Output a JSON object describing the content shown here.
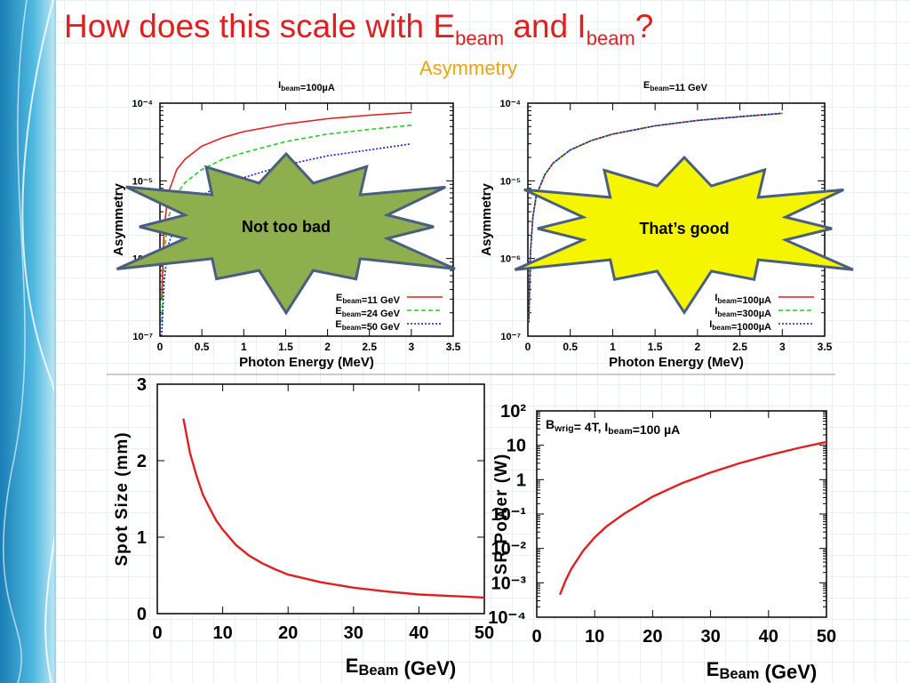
{
  "slide": {
    "title_prefix": "How does this scale with E",
    "title_sub1": "beam",
    "title_mid": " and I",
    "title_sub2": "beam",
    "title_suffix": "?",
    "subtitle": "Asymmetry",
    "callout_left": "Not too bad",
    "callout_right": "That’s good",
    "colors": {
      "title": "#e02020",
      "subtitle": "#e8a317",
      "burst_left": "#8fae4d",
      "burst_right": "#f5f500",
      "burst_edge": "#4a5f80"
    }
  },
  "chart_data": [
    {
      "id": "asym_vs_energy",
      "type": "line",
      "title": "I_beam=100µA",
      "xlabel": "Photon Energy (MeV)",
      "ylabel": "Asymmetry",
      "xlim": [
        0,
        3.5
      ],
      "ylim": [
        1e-07,
        0.0001
      ],
      "yscale": "log",
      "xticks": [
        "0",
        "0.5",
        "1",
        "1.5",
        "2",
        "2.5",
        "3",
        "3.5"
      ],
      "yticks": [
        "10⁻⁷",
        "10⁻⁶",
        "10⁻⁵",
        "10⁻⁴"
      ],
      "legend_position": "bottom-right",
      "series": [
        {
          "name": "E_beam=11 GeV",
          "color": "#e02020",
          "dash": "solid",
          "x": [
            0.02,
            0.05,
            0.1,
            0.2,
            0.3,
            0.5,
            0.75,
            1,
            1.5,
            2,
            2.5,
            3
          ],
          "y": [
            3e-07,
            2.5e-06,
            7e-06,
            1.4e-05,
            1.9e-05,
            2.8e-05,
            3.6e-05,
            4.3e-05,
            5.4e-05,
            6.3e-05,
            7e-05,
            7.6e-05
          ]
        },
        {
          "name": "E_beam=24 GeV",
          "color": "#22cc22",
          "dash": "dashed",
          "x": [
            0.02,
            0.05,
            0.1,
            0.2,
            0.3,
            0.5,
            0.75,
            1,
            1.5,
            2,
            2.5,
            3
          ],
          "y": [
            1.5e-07,
            1.2e-06,
            3.4e-06,
            6.8e-06,
            9.5e-06,
            1.4e-05,
            1.9e-05,
            2.3e-05,
            3.2e-05,
            4e-05,
            4.6e-05,
            5.2e-05
          ]
        },
        {
          "name": "E_beam=50 GeV",
          "color": "#1a1acc",
          "dash": "dotted",
          "x": [
            0.02,
            0.05,
            0.1,
            0.2,
            0.3,
            0.5,
            0.75,
            1,
            1.5,
            2,
            2.5,
            3
          ],
          "y": [
            1e-07,
            5e-07,
            1.5e-06,
            3e-06,
            4.2e-06,
            6.5e-06,
            9e-06,
            1.1e-05,
            1.6e-05,
            2.1e-05,
            2.5e-05,
            3e-05
          ]
        }
      ]
    },
    {
      "id": "asym_vs_current",
      "type": "line",
      "title": "E_beam=11 GeV",
      "xlabel": "Photon Energy (MeV)",
      "ylabel": "Asymmetry",
      "xlim": [
        0,
        3.5
      ],
      "ylim": [
        1e-07,
        0.0001
      ],
      "yscale": "log",
      "xticks": [
        "0",
        "0.5",
        "1",
        "1.5",
        "2",
        "2.5",
        "3",
        "3.5"
      ],
      "yticks": [
        "10⁻⁷",
        "10⁻⁶",
        "10⁻⁵",
        "10⁻⁴"
      ],
      "legend_position": "bottom-right",
      "series": [
        {
          "name": "I_beam=100µA",
          "color": "#e02020",
          "dash": "solid",
          "x": [
            0.01,
            0.03,
            0.06,
            0.1,
            0.2,
            0.3,
            0.5,
            0.75,
            1,
            1.5,
            2,
            2.5,
            3
          ],
          "y": [
            1.5e-07,
            1.2e-06,
            3.5e-06,
            6.5e-06,
            1.2e-05,
            1.7e-05,
            2.5e-05,
            3.3e-05,
            4e-05,
            5.1e-05,
            6e-05,
            6.7e-05,
            7.4e-05
          ]
        },
        {
          "name": "I_beam=300µA",
          "color": "#22cc22",
          "dash": "dashed",
          "x": [
            0.01,
            0.03,
            0.06,
            0.1,
            0.2,
            0.3,
            0.5,
            0.75,
            1,
            1.5,
            2,
            2.5,
            3
          ],
          "y": [
            1.5e-07,
            1.2e-06,
            3.5e-06,
            6.5e-06,
            1.2e-05,
            1.7e-05,
            2.5e-05,
            3.3e-05,
            4e-05,
            5.1e-05,
            6e-05,
            6.7e-05,
            7.4e-05
          ]
        },
        {
          "name": "I_beam=1000µA",
          "color": "#1a1acc",
          "dash": "dotted",
          "x": [
            0.01,
            0.03,
            0.06,
            0.1,
            0.2,
            0.3,
            0.5,
            0.75,
            1,
            1.5,
            2,
            2.5,
            3
          ],
          "y": [
            1.5e-07,
            1.2e-06,
            3.5e-06,
            6.5e-06,
            1.2e-05,
            1.7e-05,
            2.5e-05,
            3.3e-05,
            4e-05,
            5.1e-05,
            6e-05,
            6.7e-05,
            7.4e-05
          ]
        }
      ]
    },
    {
      "id": "spot_size",
      "type": "line",
      "xlabel": "E_Beam (GeV)",
      "ylabel": "Spot Size (mm)",
      "xlim": [
        0,
        50
      ],
      "ylim": [
        0,
        3
      ],
      "xticks": [
        "0",
        "10",
        "20",
        "30",
        "40",
        "50"
      ],
      "yticks": [
        "0",
        "1",
        "2",
        "3"
      ],
      "series": [
        {
          "color": "#e02020",
          "x": [
            4,
            5,
            6,
            7,
            8,
            9,
            10,
            12,
            14,
            16,
            18,
            20,
            25,
            30,
            35,
            40,
            45,
            50
          ],
          "y": [
            2.55,
            2.1,
            1.8,
            1.55,
            1.38,
            1.22,
            1.1,
            0.9,
            0.76,
            0.66,
            0.58,
            0.51,
            0.41,
            0.34,
            0.29,
            0.25,
            0.23,
            0.21
          ]
        }
      ]
    },
    {
      "id": "sr_power",
      "type": "line",
      "annotation": "B_wrig= 4T, I_beam=100 µA",
      "xlabel": "E_Beam (GeV)",
      "ylabel": "SR Power (W)",
      "xlim": [
        0,
        50
      ],
      "ylim": [
        0.0001,
        100
      ],
      "yscale": "log",
      "xticks": [
        "0",
        "10",
        "20",
        "30",
        "40",
        "50"
      ],
      "ytick_values": [
        -4,
        -3,
        -2,
        -1,
        0,
        1,
        2
      ],
      "yticks": [
        "10⁻⁴",
        "10⁻³",
        "10⁻²",
        "10⁻¹",
        "1",
        "10",
        "10²"
      ],
      "series": [
        {
          "color": "#e02020",
          "x": [
            4,
            5,
            6,
            8,
            10,
            12,
            15,
            20,
            25,
            30,
            35,
            40,
            45,
            50
          ],
          "y": [
            0.00045,
            0.0012,
            0.0026,
            0.0085,
            0.021,
            0.043,
            0.1,
            0.32,
            0.78,
            1.6,
            3.0,
            5.1,
            8.2,
            12.5
          ]
        }
      ]
    }
  ]
}
